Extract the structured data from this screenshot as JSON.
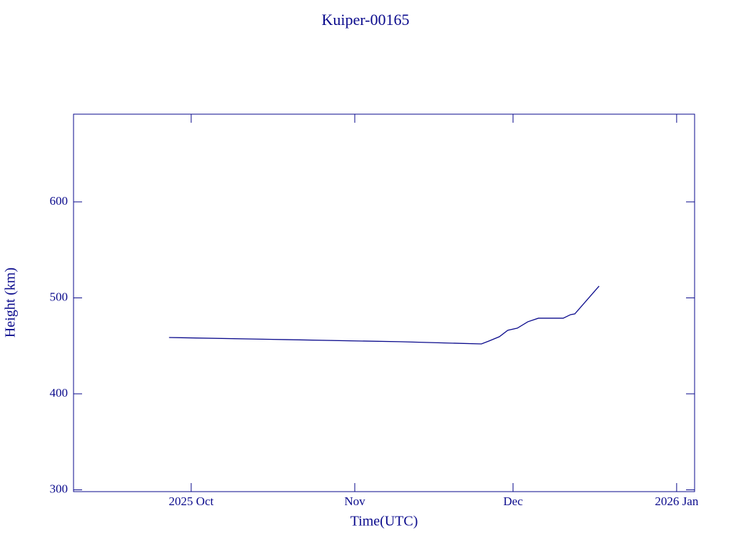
{
  "chart_data": {
    "type": "line",
    "title": "Kuiper-00165",
    "x_label": "Time(UTC)",
    "y_label": "Height (km)",
    "color": "#0a0a8c",
    "x": [
      269.8,
      291.8,
      313.5,
      329.0,
      330.4,
      332.4,
      334.0,
      335.8,
      337.8,
      339.8,
      344.5,
      345.9,
      346.7,
      351.3
    ],
    "values": [
      458.7,
      456.5,
      454.3,
      452.0,
      455.0,
      459.5,
      466.2,
      468.4,
      475.1,
      478.8,
      478.8,
      482.5,
      483.3,
      512.3
    ],
    "xlim": [
      251.7,
      369.4
    ],
    "xticks": [
      {
        "value": 274,
        "label": "2025 Oct"
      },
      {
        "value": 305,
        "label": "Nov"
      },
      {
        "value": 335,
        "label": "Dec"
      },
      {
        "value": 366,
        "label": "2026 Jan"
      }
    ],
    "ylim": [
      298.1,
      691.4
    ],
    "yticks": [
      300,
      400,
      500,
      600
    ]
  }
}
